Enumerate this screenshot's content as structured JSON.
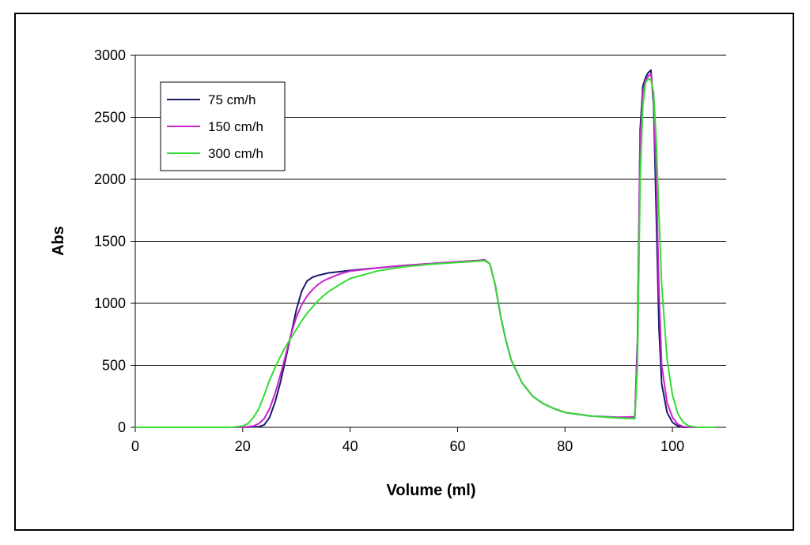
{
  "chart_data": {
    "type": "line",
    "title": "",
    "xlabel": "Volume (ml)",
    "ylabel": "Abs",
    "xlim": [
      0,
      110
    ],
    "ylim": [
      0,
      3000
    ],
    "x_ticks": [
      0,
      20,
      40,
      60,
      80,
      100
    ],
    "y_ticks": [
      0,
      500,
      1000,
      1500,
      2000,
      2500,
      3000
    ],
    "grid": "horizontal",
    "legend_position": "top-left",
    "series": [
      {
        "name": "75 cm/h",
        "color": "#1a1a6e",
        "x": [
          0,
          20,
          23,
          24,
          25,
          26,
          27,
          28,
          29,
          30,
          31,
          32,
          33,
          34,
          35,
          36,
          38,
          40,
          45,
          50,
          55,
          60,
          64,
          65,
          66,
          67,
          68,
          69,
          70,
          72,
          74,
          76,
          78,
          80,
          85,
          90,
          93,
          93.5,
          94,
          94.5,
          95,
          95.5,
          96,
          96.5,
          97,
          97.5,
          98,
          99,
          100,
          101,
          102,
          103,
          104,
          108
        ],
        "y": [
          0,
          0,
          5,
          20,
          80,
          200,
          360,
          550,
          750,
          950,
          1100,
          1180,
          1210,
          1225,
          1235,
          1245,
          1255,
          1265,
          1285,
          1305,
          1320,
          1335,
          1345,
          1350,
          1320,
          1150,
          900,
          700,
          540,
          360,
          250,
          190,
          150,
          120,
          90,
          80,
          85,
          700,
          2400,
          2750,
          2820,
          2860,
          2880,
          2600,
          1700,
          800,
          350,
          120,
          40,
          10,
          0,
          0,
          0,
          0
        ]
      },
      {
        "name": "150 cm/h",
        "color": "#cc22cc",
        "x": [
          0,
          20,
          22,
          23,
          24,
          25,
          26,
          27,
          28,
          29,
          30,
          31,
          32,
          33,
          34,
          35,
          36,
          38,
          40,
          45,
          50,
          55,
          60,
          64,
          65,
          66,
          67,
          68,
          69,
          70,
          72,
          74,
          76,
          78,
          80,
          85,
          90,
          93,
          93.5,
          94,
          94.5,
          95,
          95.5,
          96,
          96.5,
          97,
          97.5,
          98,
          99,
          100,
          101,
          102,
          103,
          104,
          108
        ],
        "y": [
          0,
          0,
          10,
          30,
          70,
          150,
          270,
          420,
          580,
          750,
          890,
          990,
          1060,
          1110,
          1150,
          1180,
          1200,
          1235,
          1260,
          1285,
          1305,
          1320,
          1335,
          1345,
          1348,
          1320,
          1150,
          900,
          700,
          540,
          360,
          250,
          190,
          150,
          120,
          90,
          80,
          85,
          650,
          2300,
          2700,
          2800,
          2830,
          2850,
          2650,
          2000,
          1100,
          500,
          200,
          80,
          25,
          5,
          0,
          0,
          0
        ]
      },
      {
        "name": "300 cm/h",
        "color": "#33dd33",
        "x": [
          0,
          18,
          20,
          21,
          22,
          23,
          24,
          25,
          26,
          27,
          28,
          29,
          30,
          31,
          32,
          33,
          34,
          35,
          36,
          38,
          40,
          45,
          50,
          55,
          60,
          64,
          65,
          66,
          67,
          68,
          69,
          70,
          72,
          74,
          76,
          78,
          80,
          85,
          90,
          93,
          93.5,
          94,
          94.5,
          95,
          95.5,
          96,
          96.5,
          97,
          97.5,
          98,
          99,
          100,
          101,
          102,
          103,
          104,
          105,
          108
        ],
        "y": [
          0,
          0,
          10,
          30,
          80,
          150,
          260,
          380,
          480,
          570,
          650,
          720,
          790,
          860,
          920,
          970,
          1020,
          1060,
          1095,
          1150,
          1200,
          1260,
          1295,
          1315,
          1330,
          1340,
          1343,
          1320,
          1150,
          900,
          700,
          540,
          360,
          250,
          190,
          150,
          120,
          90,
          75,
          70,
          500,
          2000,
          2600,
          2780,
          2810,
          2800,
          2700,
          2300,
          1700,
          1150,
          550,
          260,
          110,
          40,
          12,
          3,
          0,
          0
        ]
      }
    ]
  }
}
